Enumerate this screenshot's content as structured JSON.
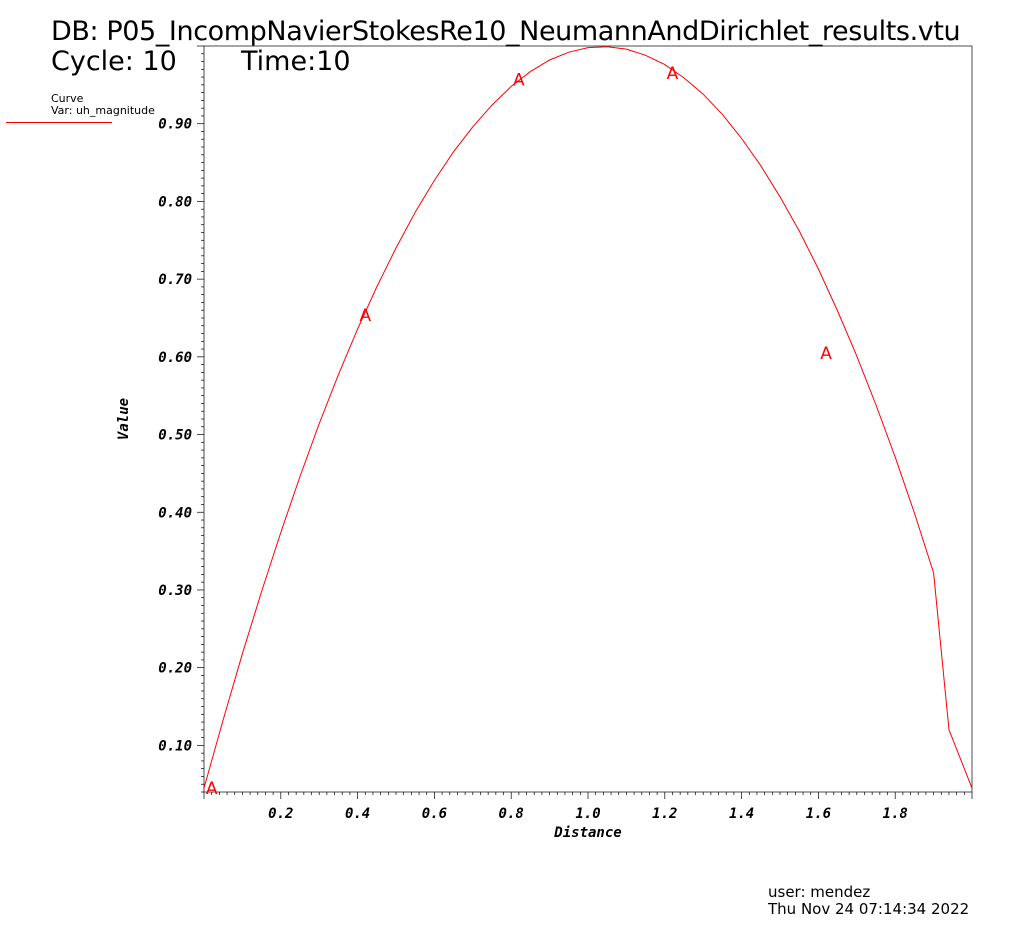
{
  "header": {
    "db": "DB: P05_IncompNavierStokesRe10_NeumannAndDirichlet_results.vtu",
    "cycle": "Cycle: 10",
    "time": "Time:10"
  },
  "legend": {
    "curve_label": "Curve",
    "var_label": "Var: uh_magnitude",
    "color": "#ff0000"
  },
  "footer": {
    "user": "user: mendez",
    "date": "Thu Nov 24 07:14:34 2022"
  },
  "chart_data": {
    "type": "line",
    "xlabel": "Distance",
    "ylabel": "Value",
    "xlim": [
      0.0,
      2.0
    ],
    "ylim": [
      0.04,
      1.0
    ],
    "grid": false,
    "x_ticks": [
      {
        "value": 0.2,
        "label": "0.2"
      },
      {
        "value": 0.4,
        "label": "0.4"
      },
      {
        "value": 0.6,
        "label": "0.6"
      },
      {
        "value": 0.8,
        "label": "0.8"
      },
      {
        "value": 1.0,
        "label": "1.0"
      },
      {
        "value": 1.2,
        "label": "1.2"
      },
      {
        "value": 1.4,
        "label": "1.4"
      },
      {
        "value": 1.6,
        "label": "1.6"
      },
      {
        "value": 1.8,
        "label": "1.8"
      }
    ],
    "y_ticks": [
      {
        "value": 0.1,
        "label": "0.10"
      },
      {
        "value": 0.2,
        "label": "0.20"
      },
      {
        "value": 0.3,
        "label": "0.30"
      },
      {
        "value": 0.4,
        "label": "0.40"
      },
      {
        "value": 0.5,
        "label": "0.50"
      },
      {
        "value": 0.6,
        "label": "0.60"
      },
      {
        "value": 0.7,
        "label": "0.70"
      },
      {
        "value": 0.8,
        "label": "0.80"
      },
      {
        "value": 0.9,
        "label": "0.90"
      }
    ],
    "series": [
      {
        "name": "Curve",
        "color": "#ff0000",
        "x": [
          0.0,
          0.05,
          0.1,
          0.15,
          0.2,
          0.25,
          0.3,
          0.35,
          0.4,
          0.45,
          0.5,
          0.55,
          0.6,
          0.65,
          0.7,
          0.75,
          0.8,
          0.85,
          0.9,
          0.95,
          1.0,
          1.05,
          1.1,
          1.15,
          1.2,
          1.25,
          1.3,
          1.35,
          1.4,
          1.45,
          1.5,
          1.55,
          1.6,
          1.65,
          1.7,
          1.75,
          1.8,
          1.85,
          1.9,
          1.94,
          2.0
        ],
        "y": [
          0.045,
          0.133,
          0.218,
          0.298,
          0.374,
          0.446,
          0.514,
          0.577,
          0.636,
          0.69,
          0.74,
          0.786,
          0.827,
          0.864,
          0.896,
          0.924,
          0.948,
          0.967,
          0.982,
          0.992,
          0.998,
          0.999,
          0.996,
          0.988,
          0.976,
          0.959,
          0.938,
          0.912,
          0.881,
          0.846,
          0.806,
          0.762,
          0.713,
          0.659,
          0.601,
          0.538,
          0.471,
          0.399,
          0.322,
          0.12,
          0.045
        ]
      }
    ],
    "markers": [
      {
        "label": "A",
        "x": 0.02,
        "y": 0.045
      },
      {
        "label": "A",
        "x": 0.42,
        "y": 0.654
      },
      {
        "label": "A",
        "x": 0.82,
        "y": 0.957
      },
      {
        "label": "A",
        "x": 1.22,
        "y": 0.965
      },
      {
        "label": "A",
        "x": 1.62,
        "y": 0.605
      }
    ]
  }
}
